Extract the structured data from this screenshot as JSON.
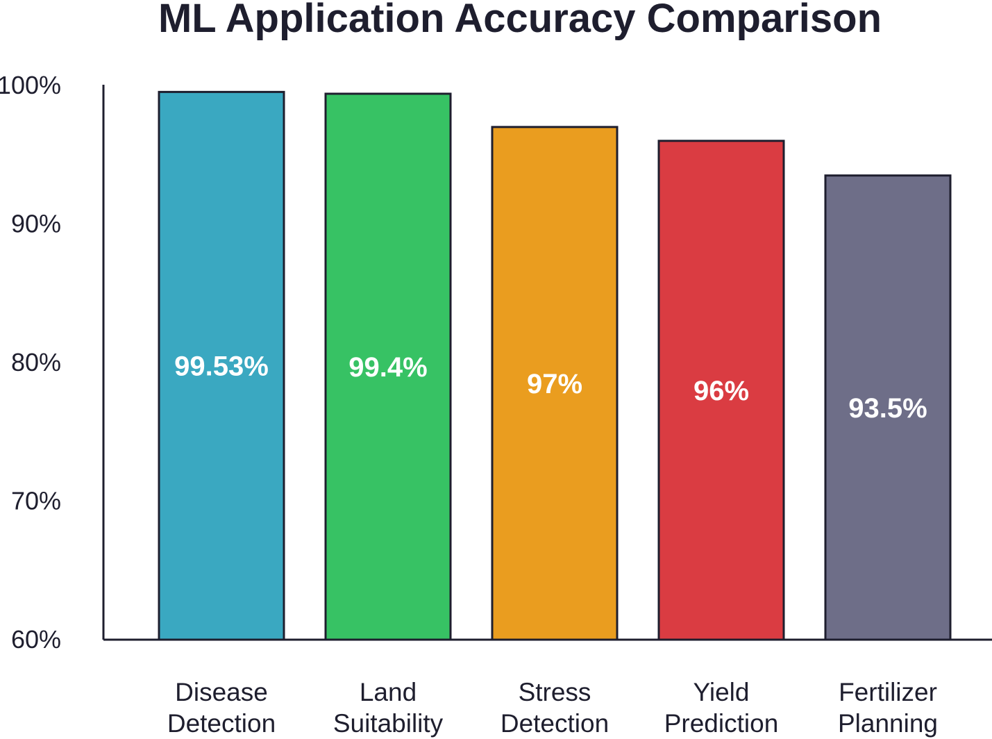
{
  "chart_data": {
    "type": "bar",
    "title": "ML Application Accuracy Comparison",
    "xlabel": "",
    "ylabel": "",
    "ylim": [
      60,
      100
    ],
    "y_ticks": [
      {
        "value": 100,
        "label": "100%"
      },
      {
        "value": 90,
        "label": "90%"
      },
      {
        "value": 80,
        "label": "80%"
      },
      {
        "value": 70,
        "label": "70%"
      },
      {
        "value": 60,
        "label": "60%"
      }
    ],
    "categories": [
      [
        "Disease",
        "Detection"
      ],
      [
        "Land",
        "Suitability"
      ],
      [
        "Stress",
        "Detection"
      ],
      [
        "Yield",
        "Prediction"
      ],
      [
        "Fertilizer",
        "Planning"
      ]
    ],
    "values": [
      99.53,
      99.4,
      97,
      96,
      93.5
    ],
    "value_labels": [
      "99.53%",
      "99.4%",
      "97%",
      "96%",
      "93.5%"
    ],
    "colors": [
      "#3aa8c1",
      "#37c264",
      "#ea9d1f",
      "#da3c42",
      "#6e6e88"
    ],
    "grid": false,
    "legend": "none"
  }
}
